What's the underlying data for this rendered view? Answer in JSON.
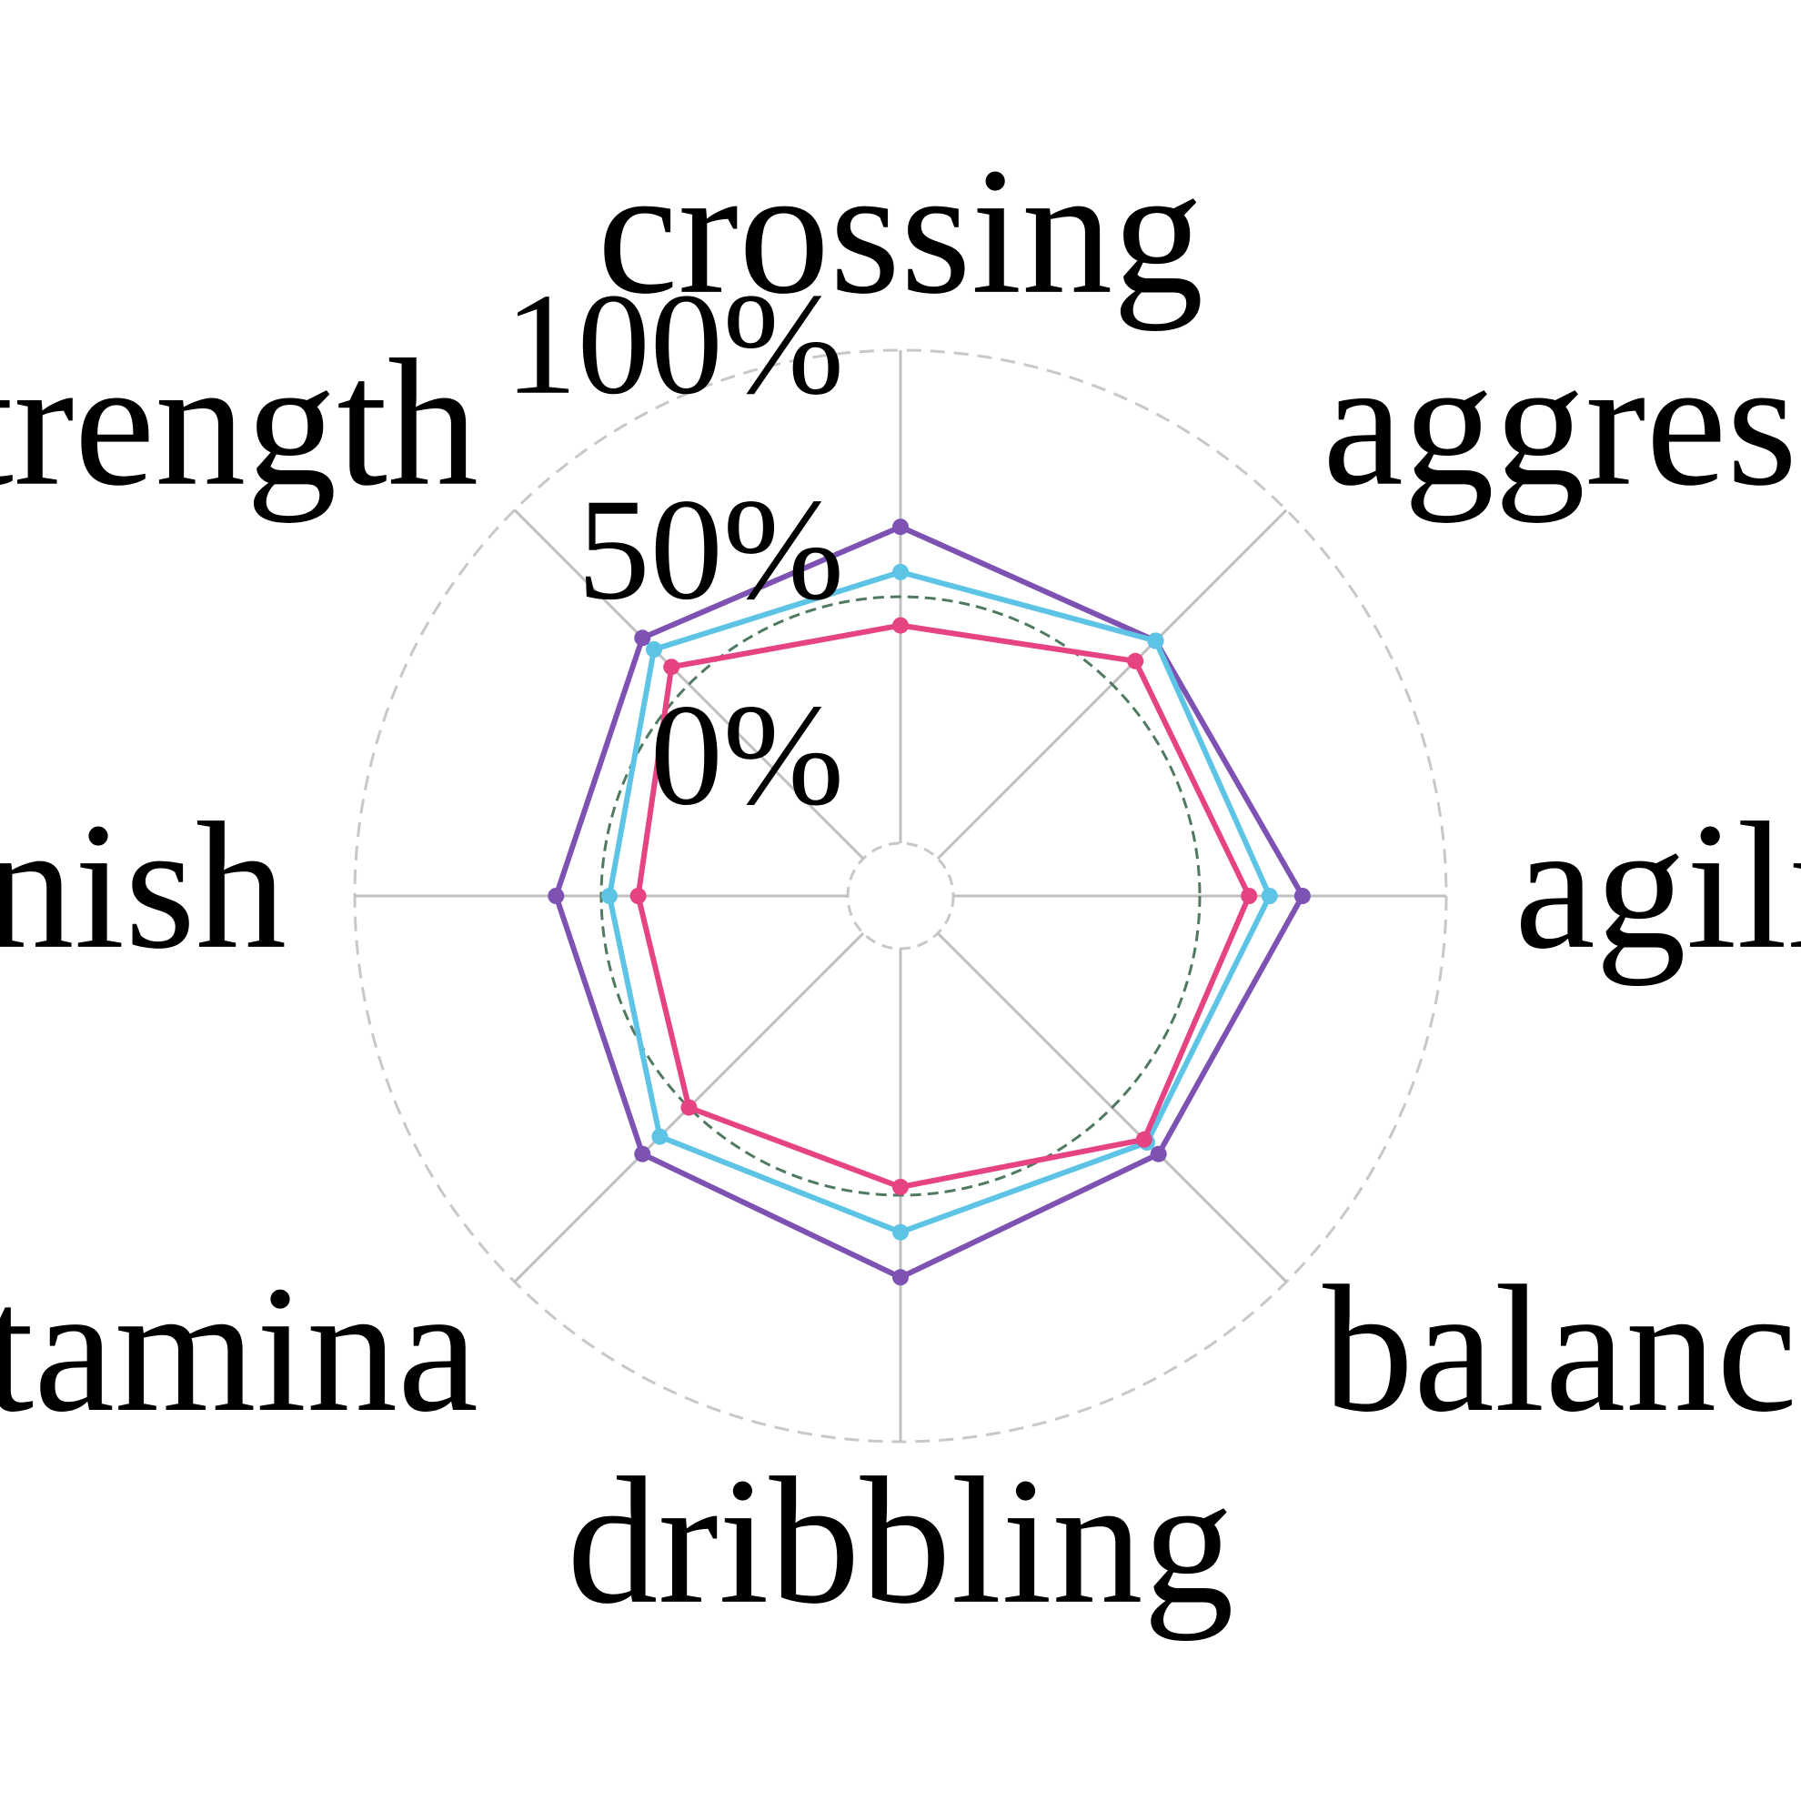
{
  "chart_data": {
    "type": "radar",
    "axes": [
      "crossing",
      "aggression",
      "agility",
      "balance",
      "dribbling",
      "stamina",
      "finish",
      "strength"
    ],
    "radial_ticks": [
      "0%",
      "50%",
      "100%"
    ],
    "radial_range": [
      -20,
      100
    ],
    "grid": true,
    "series": [
      {
        "color": "#7d52b3",
        "values": [
          57,
          55,
          65,
          56,
          60,
          56,
          51,
          56
        ]
      },
      {
        "color": "#5ec4e6",
        "values": [
          46,
          55,
          57,
          52,
          49,
          50,
          38,
          52
        ]
      },
      {
        "color": "#e64383",
        "values": [
          33,
          48,
          52,
          51,
          38,
          40,
          31,
          46
        ]
      }
    ],
    "reference_circle": {
      "value": 40,
      "color": "#4f7a5f"
    }
  }
}
